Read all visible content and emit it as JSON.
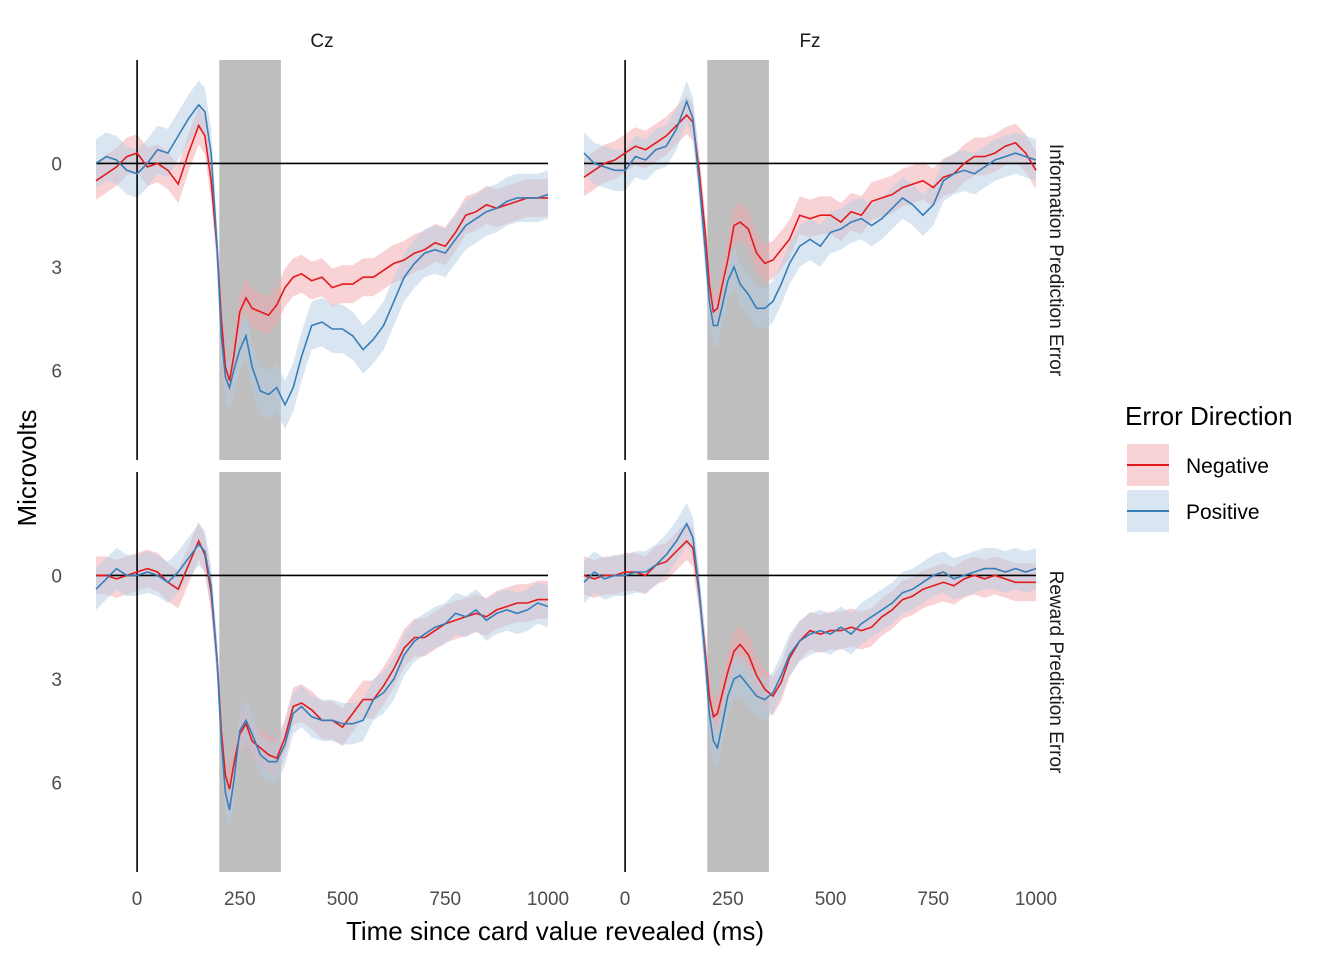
{
  "chart_data": {
    "type": "line",
    "x_label": "Time since card value revealed (ms)",
    "y_label": "Microvolts",
    "y_reversed": true,
    "xlim": [
      -100,
      1000
    ],
    "ylim": [
      -3,
      8.6
    ],
    "x_ticks": [
      0,
      250,
      500,
      750,
      1000
    ],
    "y_ticks": [
      0,
      3,
      6
    ],
    "columns": [
      "Cz",
      "Fz"
    ],
    "rows": [
      "Information Prediction Error",
      "Reward Prediction Error"
    ],
    "shaded_window_ms": [
      200,
      350
    ],
    "reference_lines": {
      "x": 0,
      "y": 0
    },
    "grid": false,
    "legend": {
      "title": "Error Direction",
      "position": "right",
      "entries": [
        {
          "name": "Negative",
          "color": "#e41a1c",
          "band_color": "#f4a5ae"
        },
        {
          "name": "Positive",
          "color": "#377eb8",
          "band_color": "#b3cde3"
        }
      ]
    },
    "panels": [
      {
        "column": "Cz",
        "row": "Information Prediction Error",
        "series": [
          {
            "name": "Negative",
            "band_halfwidth": 0.55,
            "x": [
              -100,
              -75,
              -50,
              -25,
              0,
              25,
              50,
              75,
              100,
              125,
              150,
              165,
              180,
              195,
              205,
              215,
              225,
              235,
              250,
              265,
              280,
              300,
              320,
              340,
              360,
              380,
              400,
              425,
              450,
              475,
              500,
              525,
              550,
              575,
              600,
              625,
              650,
              675,
              700,
              725,
              750,
              775,
              800,
              825,
              850,
              875,
              900,
              925,
              950,
              975,
              1000
            ],
            "y": [
              0.5,
              0.3,
              0.1,
              -0.2,
              -0.3,
              0.1,
              0.0,
              0.2,
              0.6,
              -0.3,
              -1.1,
              -0.8,
              0.5,
              2.5,
              4.5,
              5.9,
              6.3,
              5.6,
              4.3,
              3.9,
              4.2,
              4.3,
              4.4,
              4.1,
              3.6,
              3.3,
              3.2,
              3.4,
              3.3,
              3.6,
              3.5,
              3.5,
              3.3,
              3.3,
              3.1,
              2.9,
              2.8,
              2.6,
              2.5,
              2.3,
              2.4,
              2.0,
              1.5,
              1.4,
              1.2,
              1.3,
              1.2,
              1.1,
              1.0,
              1.0,
              1.0
            ]
          },
          {
            "name": "Positive",
            "band_halfwidth": 0.7,
            "x": [
              -100,
              -75,
              -50,
              -25,
              0,
              25,
              50,
              75,
              100,
              125,
              150,
              165,
              180,
              195,
              205,
              215,
              225,
              235,
              250,
              265,
              280,
              300,
              320,
              340,
              360,
              380,
              400,
              425,
              450,
              475,
              500,
              525,
              550,
              575,
              600,
              625,
              650,
              675,
              700,
              725,
              750,
              775,
              800,
              825,
              850,
              875,
              900,
              925,
              950,
              975,
              1000
            ],
            "y": [
              0.0,
              -0.2,
              -0.1,
              0.2,
              0.3,
              0.0,
              -0.4,
              -0.3,
              -0.8,
              -1.3,
              -1.7,
              -1.5,
              -0.3,
              2.5,
              5.0,
              6.2,
              6.5,
              6.0,
              5.4,
              5.0,
              5.9,
              6.6,
              6.7,
              6.5,
              7.0,
              6.5,
              5.6,
              4.7,
              4.6,
              4.8,
              4.8,
              5.0,
              5.4,
              5.1,
              4.7,
              4.0,
              3.3,
              2.9,
              2.6,
              2.5,
              2.6,
              2.2,
              1.8,
              1.6,
              1.4,
              1.3,
              1.1,
              1.0,
              1.0,
              1.0,
              0.9
            ]
          }
        ]
      },
      {
        "column": "Fz",
        "row": "Information Prediction Error",
        "series": [
          {
            "name": "Negative",
            "band_halfwidth": 0.55,
            "x": [
              -100,
              -75,
              -50,
              -25,
              0,
              25,
              50,
              75,
              100,
              125,
              150,
              165,
              180,
              195,
              205,
              215,
              225,
              235,
              250,
              265,
              280,
              300,
              320,
              340,
              360,
              380,
              400,
              425,
              450,
              475,
              500,
              525,
              550,
              575,
              600,
              625,
              650,
              675,
              700,
              725,
              750,
              775,
              800,
              825,
              850,
              875,
              900,
              925,
              950,
              975,
              1000
            ],
            "y": [
              0.4,
              0.2,
              0.0,
              -0.1,
              -0.3,
              -0.5,
              -0.4,
              -0.6,
              -0.8,
              -1.1,
              -1.4,
              -1.2,
              0.2,
              2.0,
              3.5,
              4.3,
              4.2,
              3.6,
              2.8,
              1.8,
              1.7,
              1.9,
              2.6,
              2.9,
              2.8,
              2.5,
              2.2,
              1.5,
              1.6,
              1.5,
              1.5,
              1.7,
              1.4,
              1.5,
              1.1,
              1.0,
              0.9,
              0.7,
              0.6,
              0.5,
              0.7,
              0.4,
              0.3,
              0.0,
              -0.2,
              -0.2,
              -0.3,
              -0.5,
              -0.6,
              -0.3,
              0.2
            ]
          },
          {
            "name": "Positive",
            "band_halfwidth": 0.6,
            "x": [
              -100,
              -75,
              -50,
              -25,
              0,
              25,
              50,
              75,
              100,
              125,
              150,
              165,
              180,
              195,
              205,
              215,
              225,
              235,
              250,
              265,
              280,
              300,
              320,
              340,
              360,
              380,
              400,
              425,
              450,
              475,
              500,
              525,
              550,
              575,
              600,
              625,
              650,
              675,
              700,
              725,
              750,
              775,
              800,
              825,
              850,
              875,
              900,
              925,
              950,
              975,
              1000
            ],
            "y": [
              -0.3,
              0.0,
              0.1,
              0.2,
              0.2,
              -0.2,
              -0.1,
              -0.4,
              -0.5,
              -1.0,
              -1.8,
              -1.3,
              0.5,
              2.5,
              4.0,
              4.7,
              4.7,
              4.2,
              3.4,
              3.0,
              3.5,
              3.8,
              4.2,
              4.2,
              4.0,
              3.5,
              2.9,
              2.4,
              2.2,
              2.4,
              2.0,
              1.9,
              1.7,
              1.6,
              1.8,
              1.6,
              1.3,
              1.0,
              1.2,
              1.5,
              1.2,
              0.5,
              0.3,
              0.2,
              0.3,
              0.1,
              -0.1,
              -0.2,
              -0.3,
              -0.2,
              -0.1
            ]
          }
        ]
      },
      {
        "column": "Cz",
        "row": "Reward Prediction Error",
        "series": [
          {
            "name": "Negative",
            "band_halfwidth": 0.55,
            "x": [
              -100,
              -75,
              -50,
              -25,
              0,
              25,
              50,
              75,
              100,
              125,
              150,
              165,
              180,
              195,
              205,
              215,
              225,
              235,
              250,
              265,
              280,
              300,
              320,
              340,
              360,
              380,
              400,
              425,
              450,
              475,
              500,
              525,
              550,
              575,
              600,
              625,
              650,
              675,
              700,
              725,
              750,
              775,
              800,
              825,
              850,
              875,
              900,
              925,
              950,
              975,
              1000
            ],
            "y": [
              0.0,
              0.0,
              0.1,
              0.0,
              -0.1,
              -0.2,
              -0.1,
              0.2,
              0.4,
              -0.3,
              -1.0,
              -0.6,
              0.5,
              2.5,
              4.5,
              5.8,
              6.2,
              5.5,
              4.6,
              4.3,
              4.8,
              5.0,
              5.2,
              5.3,
              4.7,
              3.8,
              3.7,
              3.9,
              4.2,
              4.2,
              4.4,
              4.0,
              3.6,
              3.6,
              3.2,
              2.7,
              2.1,
              1.8,
              1.8,
              1.6,
              1.4,
              1.3,
              1.2,
              1.1,
              1.2,
              1.0,
              0.9,
              0.8,
              0.8,
              0.7,
              0.7
            ]
          },
          {
            "name": "Positive",
            "band_halfwidth": 0.6,
            "x": [
              -100,
              -75,
              -50,
              -25,
              0,
              25,
              50,
              75,
              100,
              125,
              150,
              165,
              180,
              195,
              205,
              215,
              225,
              235,
              250,
              265,
              280,
              300,
              320,
              340,
              360,
              380,
              400,
              425,
              450,
              475,
              500,
              525,
              550,
              575,
              600,
              625,
              650,
              675,
              700,
              725,
              750,
              775,
              800,
              825,
              850,
              875,
              900,
              925,
              950,
              975,
              1000
            ],
            "y": [
              0.4,
              0.1,
              -0.2,
              0.0,
              0.0,
              -0.1,
              0.0,
              0.2,
              -0.1,
              -0.5,
              -0.9,
              -0.7,
              0.3,
              2.5,
              4.8,
              6.3,
              6.8,
              6.0,
              4.5,
              4.2,
              4.6,
              5.2,
              5.4,
              5.4,
              4.9,
              4.0,
              3.8,
              4.1,
              4.2,
              4.2,
              4.3,
              4.3,
              4.2,
              3.6,
              3.4,
              3.0,
              2.3,
              1.9,
              1.7,
              1.5,
              1.4,
              1.1,
              1.2,
              1.0,
              1.3,
              1.1,
              1.0,
              1.1,
              1.0,
              0.8,
              0.9
            ]
          }
        ]
      },
      {
        "column": "Fz",
        "row": "Reward Prediction Error",
        "series": [
          {
            "name": "Negative",
            "band_halfwidth": 0.55,
            "x": [
              -100,
              -75,
              -50,
              -25,
              0,
              25,
              50,
              75,
              100,
              125,
              150,
              165,
              180,
              195,
              205,
              215,
              225,
              235,
              250,
              265,
              280,
              300,
              320,
              340,
              360,
              380,
              400,
              425,
              450,
              475,
              500,
              525,
              550,
              575,
              600,
              625,
              650,
              675,
              700,
              725,
              750,
              775,
              800,
              825,
              850,
              875,
              900,
              925,
              950,
              975,
              1000
            ],
            "y": [
              0.0,
              0.1,
              0.0,
              0.0,
              -0.1,
              -0.1,
              0.0,
              -0.3,
              -0.4,
              -0.7,
              -1.0,
              -0.8,
              0.5,
              2.2,
              3.5,
              4.1,
              4.0,
              3.5,
              2.8,
              2.2,
              2.0,
              2.3,
              2.9,
              3.3,
              3.5,
              3.1,
              2.4,
              1.9,
              1.6,
              1.7,
              1.6,
              1.6,
              1.5,
              1.6,
              1.5,
              1.2,
              1.0,
              0.7,
              0.6,
              0.4,
              0.3,
              0.2,
              0.3,
              0.1,
              0.0,
              0.1,
              0.0,
              0.1,
              0.2,
              0.2,
              0.2
            ]
          },
          {
            "name": "Positive",
            "band_halfwidth": 0.6,
            "x": [
              -100,
              -75,
              -50,
              -25,
              0,
              25,
              50,
              75,
              100,
              125,
              150,
              165,
              180,
              195,
              205,
              215,
              225,
              235,
              250,
              265,
              280,
              300,
              320,
              340,
              360,
              380,
              400,
              425,
              450,
              475,
              500,
              525,
              550,
              575,
              600,
              625,
              650,
              675,
              700,
              725,
              750,
              775,
              800,
              825,
              850,
              875,
              900,
              925,
              950,
              975,
              1000
            ],
            "y": [
              0.2,
              -0.1,
              0.1,
              0.0,
              0.0,
              -0.1,
              -0.1,
              -0.3,
              -0.6,
              -1.0,
              -1.5,
              -1.1,
              0.4,
              2.4,
              4.0,
              4.8,
              5.0,
              4.4,
              3.5,
              3.0,
              2.9,
              3.2,
              3.5,
              3.6,
              3.4,
              2.9,
              2.3,
              1.9,
              1.7,
              1.6,
              1.7,
              1.5,
              1.7,
              1.4,
              1.2,
              1.0,
              0.8,
              0.5,
              0.4,
              0.2,
              0.0,
              -0.1,
              0.1,
              0.0,
              -0.1,
              -0.2,
              -0.2,
              -0.1,
              -0.2,
              -0.1,
              -0.2
            ]
          }
        ]
      }
    ]
  }
}
